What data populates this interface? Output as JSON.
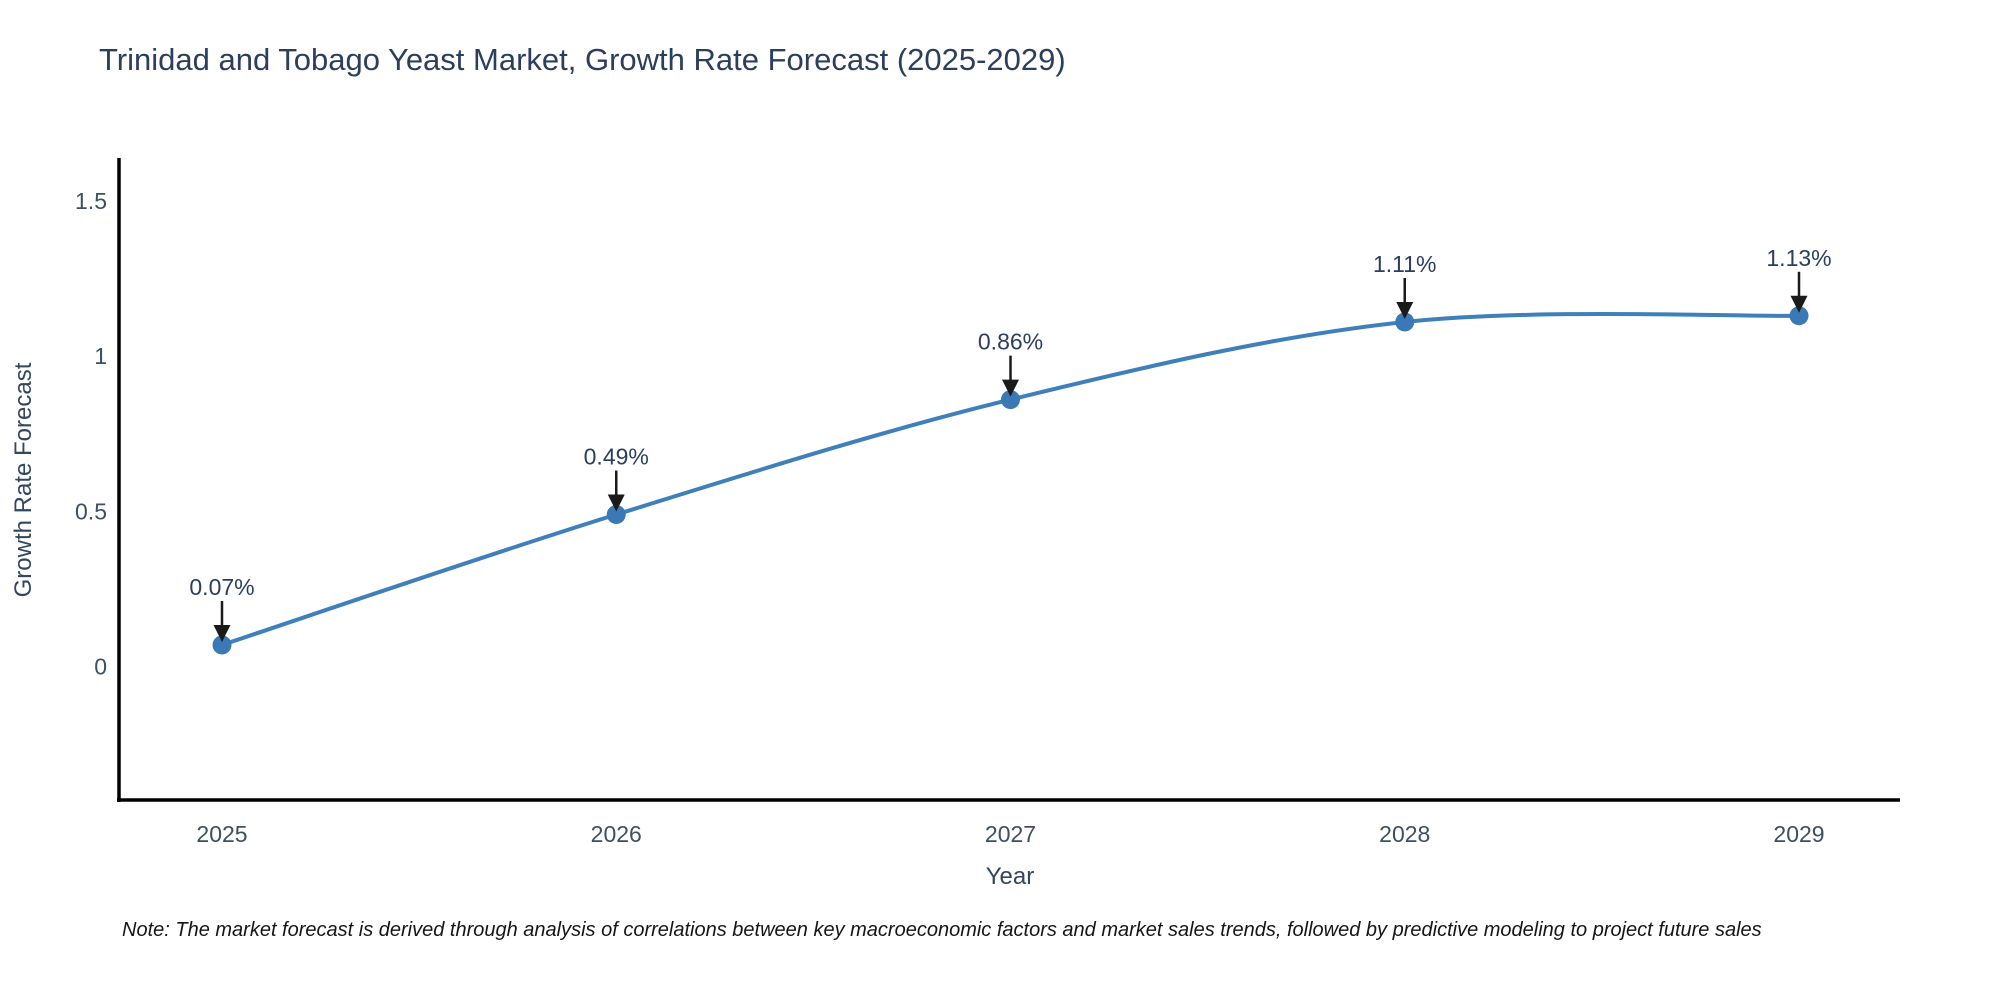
{
  "chart_data": {
    "type": "line",
    "title": "Trinidad and Tobago Yeast Market, Growth Rate Forecast (2025-2029)",
    "xlabel": "Year",
    "ylabel": "Growth Rate Forecast",
    "x": [
      2025,
      2026,
      2027,
      2028,
      2029
    ],
    "x_tick_labels": [
      "2025",
      "2026",
      "2027",
      "2028",
      "2029"
    ],
    "series": [
      {
        "name": "Growth Rate Forecast",
        "values": [
          0.07,
          0.49,
          0.86,
          1.11,
          1.13
        ]
      }
    ],
    "point_labels": [
      "0.07%",
      "0.49%",
      "0.86%",
      "1.11%",
      "1.13%"
    ],
    "y_ticks": [
      0,
      0.5,
      1,
      1.5
    ],
    "y_tick_labels": [
      "0",
      "0.5",
      "1",
      "1.5"
    ],
    "ylim": [
      -0.43,
      1.64
    ],
    "xlim": [
      2024.74,
      2029.26
    ],
    "grid": false,
    "legend": "none",
    "line_shape": "spline",
    "colors": {
      "line": "#3f7fba",
      "marker": "#3a79b5",
      "annotation_text": "#2c3e5d",
      "annotation_arrow": "#1a1a1a",
      "title_text": "#2c3e5d",
      "axis_text": "#3e4f63",
      "axis_line": "#000000"
    }
  },
  "note": {
    "text": "Note: The market forecast is derived through analysis of correlations between key macroeconomic factors and market sales trends, followed by predictive modeling to project future sales"
  }
}
